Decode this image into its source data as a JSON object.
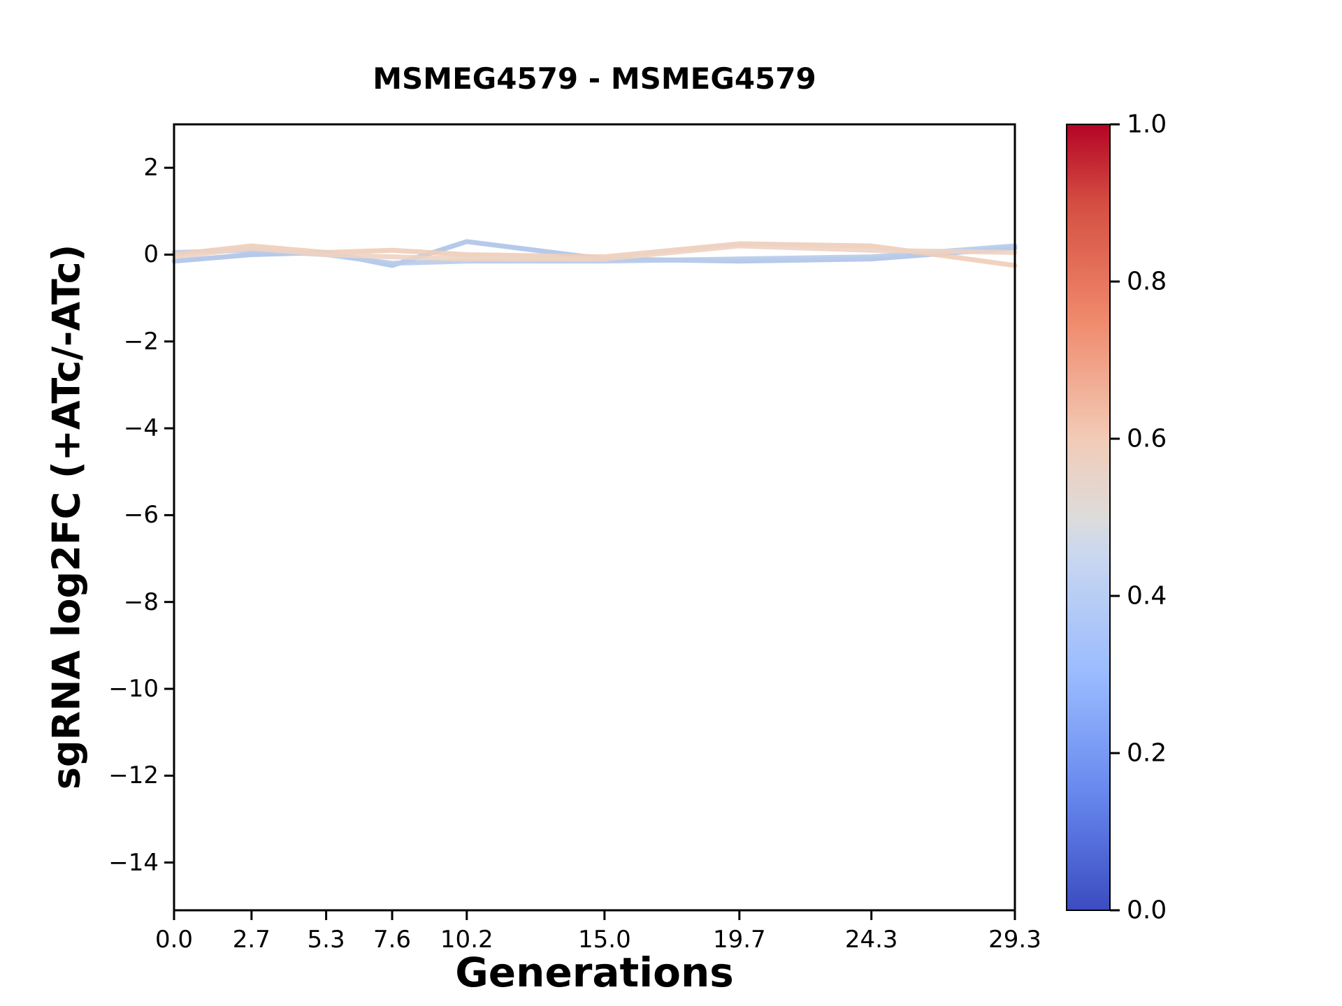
{
  "figure": {
    "background": "#ffffff"
  },
  "chart_data": {
    "type": "line",
    "title": "MSMEG4579 - MSMEG4579",
    "xlabel": "Generations",
    "ylabel": "sgRNA log2FC (+ATc/-ATc)",
    "xlim": [
      0.0,
      29.3
    ],
    "ylim": [
      -15.1,
      3.0
    ],
    "grid": false,
    "legend": "none",
    "x": [
      0.0,
      2.7,
      5.3,
      7.6,
      10.2,
      15.0,
      19.7,
      24.3,
      29.3
    ],
    "x_tick_values": [
      0.0,
      2.7,
      5.3,
      7.6,
      10.2,
      15.0,
      19.7,
      24.3,
      29.3
    ],
    "x_tick_labels": [
      "0.0",
      "2.7",
      "5.3",
      "7.6",
      "10.2",
      "15.0",
      "19.7",
      "24.3",
      "29.3"
    ],
    "y_tick_values": [
      2,
      0,
      -2,
      -4,
      -6,
      -8,
      -10,
      -12,
      -14
    ],
    "y_tick_labels": [
      "2",
      "0",
      "−2",
      "−4",
      "−6",
      "−8",
      "−10",
      "−12",
      "−14"
    ],
    "series": [
      {
        "name": "line-1",
        "cmap_value": 0.4,
        "color": "#aec3e8",
        "values": [
          -0.15,
          0.0,
          0.05,
          -0.25,
          0.3,
          -0.1,
          -0.15,
          -0.1,
          0.15
        ]
      },
      {
        "name": "line-2",
        "cmap_value": 0.42,
        "color": "#b7cbea",
        "values": [
          0.05,
          0.1,
          0.0,
          -0.2,
          -0.15,
          -0.15,
          -0.1,
          -0.05,
          0.2
        ]
      },
      {
        "name": "line-3",
        "cmap_value": 0.6,
        "color": "#f0cdb8",
        "values": [
          0.0,
          0.2,
          0.05,
          0.1,
          0.0,
          -0.05,
          0.25,
          0.2,
          -0.25
        ]
      },
      {
        "name": "line-4",
        "cmap_value": 0.58,
        "color": "#edd3c3",
        "values": [
          -0.05,
          0.15,
          0.0,
          -0.05,
          -0.1,
          -0.1,
          0.2,
          0.1,
          0.05
        ]
      }
    ],
    "colorbar": {
      "tick_values": [
        1.0,
        0.8,
        0.6,
        0.4,
        0.2,
        0.0
      ],
      "tick_labels": [
        "1.0",
        "0.8",
        "0.6",
        "0.4",
        "0.2",
        "0.0"
      ],
      "range": [
        0.0,
        1.0
      ],
      "cmap": "coolwarm",
      "gradient_stops": [
        {
          "pos": 0.0,
          "color": "#3b4cc0"
        },
        {
          "pos": 0.15,
          "color": "#6788ee"
        },
        {
          "pos": 0.3,
          "color": "#9abbff"
        },
        {
          "pos": 0.45,
          "color": "#c9d7f0"
        },
        {
          "pos": 0.5,
          "color": "#dddcdb"
        },
        {
          "pos": 0.6,
          "color": "#f2cbb7"
        },
        {
          "pos": 0.75,
          "color": "#f08a6c"
        },
        {
          "pos": 0.9,
          "color": "#d44e41"
        },
        {
          "pos": 1.0,
          "color": "#b40426"
        }
      ]
    }
  }
}
